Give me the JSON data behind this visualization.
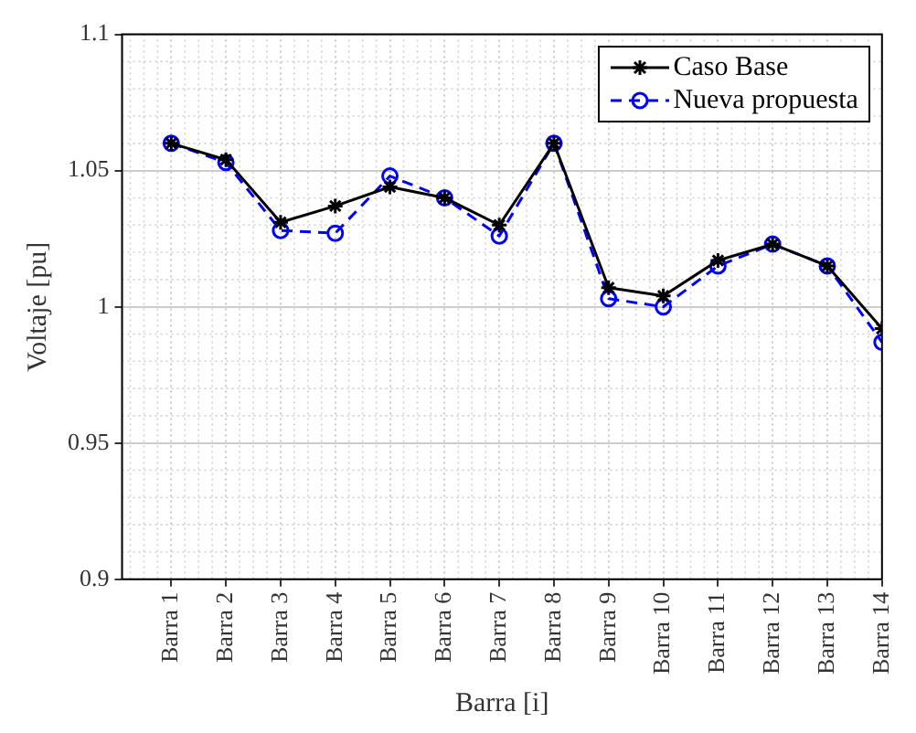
{
  "chart_data": {
    "type": "line",
    "xlabel": "Barra [i]",
    "ylabel": "Voltaje [pu]",
    "categories": [
      "Barra 1",
      "Barra 2",
      "Barra 3",
      "Barra 4",
      "Barra 5",
      "Barra 6",
      "Barra 7",
      "Barra 8",
      "Barra 9",
      "Barra 10",
      "Barra 11",
      "Barra 12",
      "Barra 13",
      "Barra 14"
    ],
    "series": [
      {
        "name": "Caso Base",
        "color": "#000000",
        "marker": "cross",
        "line_style": "solid",
        "values": [
          1.06,
          1.054,
          1.031,
          1.037,
          1.044,
          1.04,
          1.03,
          1.06,
          1.007,
          1.004,
          1.017,
          1.023,
          1.015,
          0.992
        ]
      },
      {
        "name": "Nueva propuesta",
        "color": "#0000ff",
        "marker": "circle",
        "line_style": "dashed",
        "values": [
          1.06,
          1.053,
          1.028,
          1.027,
          1.048,
          1.04,
          1.026,
          1.06,
          1.003,
          1.0,
          1.015,
          1.023,
          1.015,
          0.987
        ]
      }
    ],
    "ylim": [
      0.9,
      1.1
    ],
    "yticks": [
      0.9,
      0.95,
      1,
      1.05,
      1.1
    ],
    "grid": true,
    "legend": "top right"
  }
}
